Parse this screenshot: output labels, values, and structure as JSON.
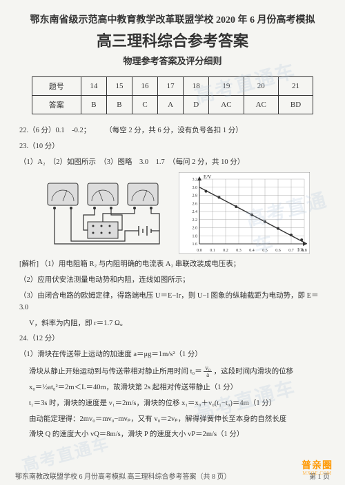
{
  "watermark_text": "高考直通车",
  "header": {
    "line1": "鄂东南省级示范高中教育教学改革联盟学校 2020 年 6 月份高考模拟",
    "line2": "高三理科综合参考答案",
    "line3": "物理参考答案及评分细则"
  },
  "answer_table": {
    "row_labels": [
      "题号",
      "答案"
    ],
    "cols": [
      "14",
      "15",
      "16",
      "17",
      "18",
      "19",
      "20",
      "21"
    ],
    "answers": [
      "B",
      "B",
      "C",
      "A",
      "D",
      "AC",
      "AC",
      "BD"
    ]
  },
  "q22": {
    "full": "22.（6 分）0.1　-0.2；　　　（每空 2 分，共 6 分，没有负号各扣 1 分）"
  },
  "q23": {
    "head": "23.（10 分）",
    "line1": "（1）A₂　（2）如图所示　（3）图略　3.0　1.7　（每问 2 分，共 10 分）",
    "analysis_label": "[解析]",
    "a1": "（1）用电阻箱 R₂ 与内阻明确的电流表 A₂ 串联改装成电压表；",
    "a2": "（2）应用伏安法测量电动势和内阻，连线如图所示；",
    "a3a": "（3）由闭合电路的欧姆定律，得路端电压 U＝E−Ir，则 U−I 图象的纵轴截距为电动势，即 E＝3.0",
    "a3b": "V，斜率为内阻，即 r＝1.7 Ω。"
  },
  "q24": {
    "head": "24.（12 分）",
    "l1": "（1）滑块在传送带上运动的加速度 a＝μg＝1m/s²（1 分）",
    "l2_a": "滑块从静止开始运动到与传送带相对静止所用时间 t₀＝",
    "l2_b": "，这段时间内滑块的位移",
    "l3": "x₀＝½at₀²＝2m＜L＝40m，故滑块第 2s 起相对传送带静止（1 分）",
    "l4": "t₁＝3s 时，滑块的速度是 v₁＝2m/s，滑块的位移 x₁＝x₀＋v₀(t₁−t₀)＝4m（1 分）",
    "l5": "由动能定理得：2mv₀＝mv₀−mvₚ，又有 v₀＝2vₚ，解得弹簧伸长至本身的自然长度",
    "l6": "滑块 Q 的速度大小 vQ＝8m/s，滑块 P 的速度大小 vP＝2m/s（1 分）"
  },
  "circuit": {
    "bg": "#f5f5f2",
    "stroke": "#333",
    "meter_fill": "#dcdcdc"
  },
  "graph": {
    "bg": "#ffffff",
    "axis_color": "#333",
    "grid_color": "#999",
    "line_color": "#333",
    "xlabel": "I/A",
    "ylabel": "E/V",
    "xlim": [
      0,
      0.8
    ],
    "ylim": [
      1.6,
      3.2
    ],
    "xticks": [
      0,
      0.1,
      0.2,
      0.3,
      0.4,
      0.5,
      0.6,
      0.7,
      0.8
    ],
    "yticks": [
      1.6,
      1.8,
      2.0,
      2.2,
      2.4,
      2.6,
      2.8,
      3.0,
      3.2
    ],
    "points": [
      [
        0.05,
        2.9
      ],
      [
        0.15,
        2.75
      ],
      [
        0.28,
        2.52
      ],
      [
        0.4,
        2.32
      ],
      [
        0.5,
        2.15
      ],
      [
        0.6,
        1.98
      ],
      [
        0.7,
        1.82
      ],
      [
        0.78,
        1.7
      ]
    ],
    "fit_start": [
      0,
      3.0
    ],
    "fit_end": [
      0.82,
      1.6
    ]
  },
  "footer": {
    "left": "鄂东南教改联盟学校 6 月份高考模拟  高三理科综合参考答案（共 8 页）",
    "right_page": "第 1 页"
  },
  "brand": {
    "cn": "普亲圈",
    "en": "MXQE.COM"
  }
}
